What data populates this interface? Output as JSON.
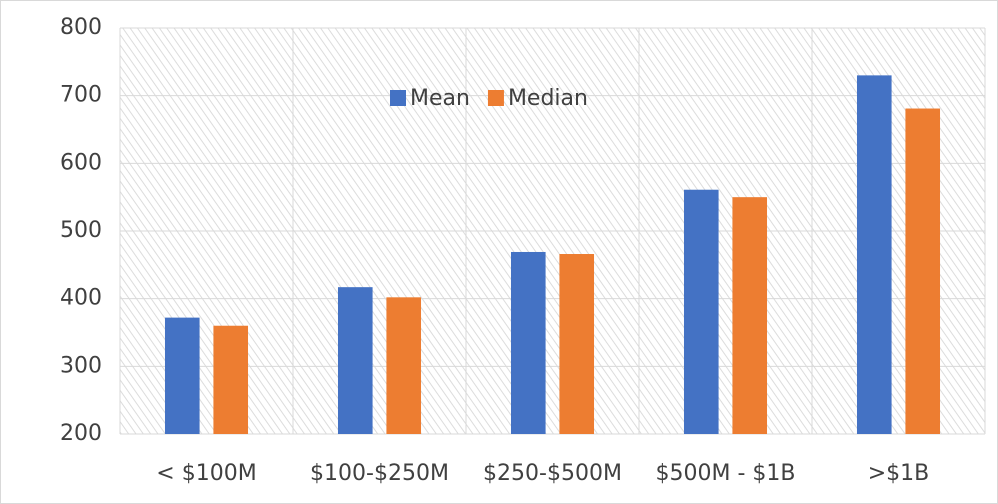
{
  "chart_data": {
    "type": "bar",
    "categories": [
      "< $100M",
      "$100-$250M",
      "$250-$500M",
      "$500M - $1B",
      ">$1B"
    ],
    "series": [
      {
        "name": "Mean",
        "color": "#4472c4",
        "values": [
          372,
          417,
          469,
          561,
          730
        ]
      },
      {
        "name": "Median",
        "color": "#ed7d31",
        "values": [
          360,
          402,
          466,
          550,
          681
        ]
      }
    ],
    "ylim": [
      200,
      800
    ],
    "yticks": [
      200,
      300,
      400,
      500,
      600,
      700,
      800
    ],
    "grid": true,
    "legend": "top"
  }
}
